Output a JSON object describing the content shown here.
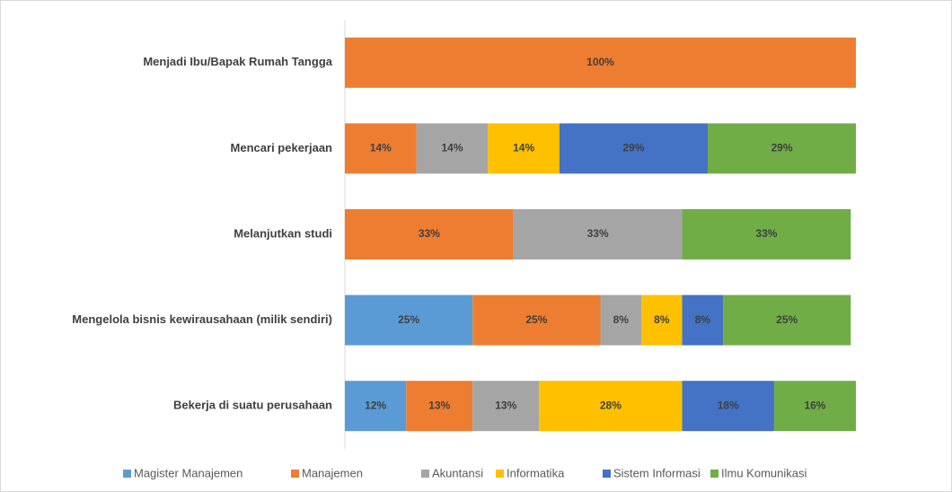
{
  "chart_data": {
    "type": "stacked_barh",
    "categories": [
      "Menjadi Ibu/Bapak Rumah Tangga",
      "Mencari pekerjaan",
      "Melanjutkan studi",
      "Mengelola bisnis kewirausahaan (milik sendiri)",
      "Bekerja di suatu perusahaan"
    ],
    "series": [
      {
        "name": "Magister Manajemen",
        "color": "#5b9bd5",
        "values": [
          null,
          null,
          null,
          25,
          12
        ],
        "value_labels": [
          null,
          null,
          null,
          "25%",
          "12%"
        ]
      },
      {
        "name": "Manajemen",
        "color": "#ed7d31",
        "values": [
          100,
          14,
          33,
          25,
          13
        ],
        "value_labels": [
          "100%",
          "14%",
          "33%",
          "25%",
          "13%"
        ]
      },
      {
        "name": "Akuntansi",
        "color": "#a5a5a5",
        "values": [
          null,
          14,
          33,
          8,
          13
        ],
        "value_labels": [
          null,
          "14%",
          "33%",
          "8%",
          "13%"
        ]
      },
      {
        "name": "Informatika",
        "color": "#ffc000",
        "values": [
          null,
          14,
          null,
          8,
          28
        ],
        "value_labels": [
          null,
          "14%",
          null,
          "8%",
          "28%"
        ]
      },
      {
        "name": "Sistem Informasi",
        "color": "#4472c4",
        "values": [
          null,
          29,
          null,
          8,
          18
        ],
        "value_labels": [
          null,
          "29%",
          null,
          "8%",
          "18%"
        ]
      },
      {
        "name": "Ilmu Komunikasi",
        "color": "#70ad47",
        "values": [
          null,
          29,
          33,
          25,
          16
        ],
        "value_labels": [
          null,
          "29%",
          "33%",
          "25%",
          "16%"
        ]
      }
    ],
    "xlim": [
      0,
      100
    ],
    "legend": "bottom"
  }
}
